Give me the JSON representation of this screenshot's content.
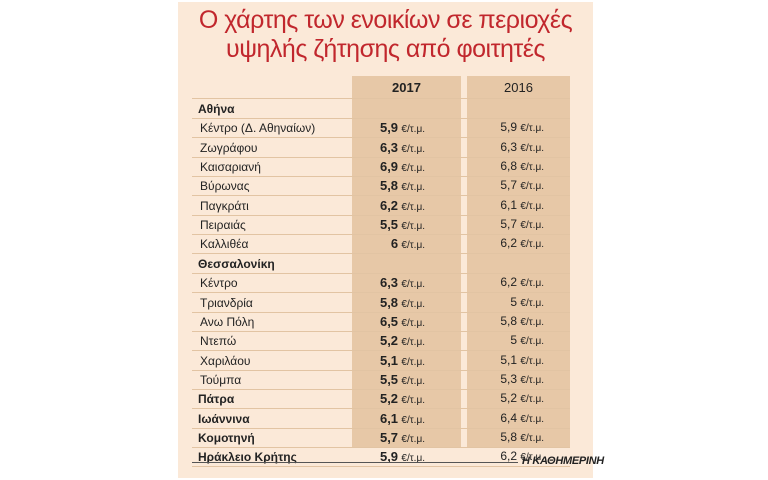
{
  "title_line1": "Ο χάρτης των ενοικίων σε περιοχές",
  "title_line2": "υψηλής ζήτησης από φοιτητές",
  "source": "Η ΚΑΘΗΜΕΡΙΝΗ",
  "unit": "€/τ.μ.",
  "colors": {
    "title": "#c1272d",
    "panel": "#fbe9d8",
    "column": "#e7c8a7"
  },
  "chart_data": {
    "type": "table",
    "columns": [
      "2017",
      "2016"
    ],
    "rows": [
      {
        "label": "Αθήνα",
        "region": true,
        "v2017": "",
        "v2016": ""
      },
      {
        "label": "Κέντρο (Δ. Αθηναίων)",
        "region": false,
        "v2017": "5,9",
        "v2016": "5,9"
      },
      {
        "label": "Ζωγράφου",
        "region": false,
        "v2017": "6,3",
        "v2016": "6,3"
      },
      {
        "label": "Καισαριανή",
        "region": false,
        "v2017": "6,9",
        "v2016": "6,8"
      },
      {
        "label": "Βύρωνας",
        "region": false,
        "v2017": "5,8",
        "v2016": "5,7"
      },
      {
        "label": "Παγκράτι",
        "region": false,
        "v2017": "6,2",
        "v2016": "6,1"
      },
      {
        "label": "Πειραιάς",
        "region": false,
        "v2017": "5,5",
        "v2016": "5,7"
      },
      {
        "label": "Καλλιθέα",
        "region": false,
        "v2017": "6",
        "v2016": "6,2"
      },
      {
        "label": "Θεσσαλονίκη",
        "region": true,
        "v2017": "",
        "v2016": ""
      },
      {
        "label": "Κέντρο",
        "region": false,
        "v2017": "6,3",
        "v2016": "6,2"
      },
      {
        "label": "Τριανδρία",
        "region": false,
        "v2017": "5,8",
        "v2016": "5"
      },
      {
        "label": "Ανω Πόλη",
        "region": false,
        "v2017": "6,5",
        "v2016": "5,8"
      },
      {
        "label": "Ντεπώ",
        "region": false,
        "v2017": "5,2",
        "v2016": "5"
      },
      {
        "label": "Χαριλάου",
        "region": false,
        "v2017": "5,1",
        "v2016": "5,1"
      },
      {
        "label": "Τούμπα",
        "region": false,
        "v2017": "5,5",
        "v2016": "5,3"
      },
      {
        "label": "Πάτρα",
        "region": true,
        "v2017": "5,2",
        "v2016": "5,2"
      },
      {
        "label": "Ιωάννινα",
        "region": true,
        "v2017": "6,1",
        "v2016": "6,4"
      },
      {
        "label": "Κομοτηνή",
        "region": true,
        "v2017": "5,7",
        "v2016": "5,8"
      },
      {
        "label": "Ηράκλειο Κρήτης",
        "region": true,
        "v2017": "5,9",
        "v2016": "6,2"
      }
    ]
  }
}
